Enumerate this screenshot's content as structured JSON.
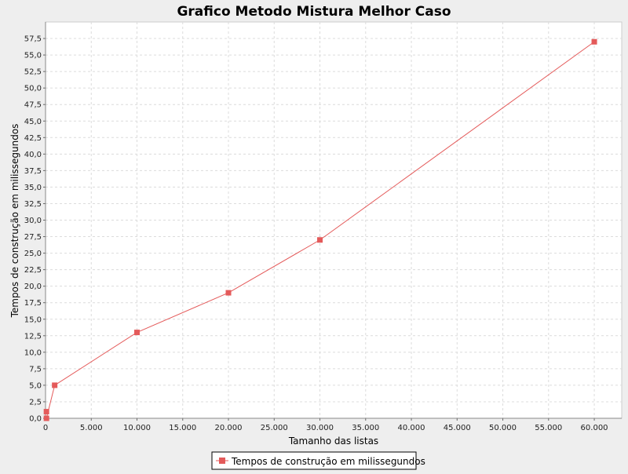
{
  "chart_data": {
    "type": "line",
    "title": "Grafico Metodo Mistura Melhor Caso",
    "xlabel": "Tamanho das listas",
    "ylabel": "Tempos de construção em milissegundos",
    "xlim": [
      0,
      63000
    ],
    "ylim": [
      0,
      60
    ],
    "x_ticks": [
      0,
      5000,
      10000,
      15000,
      20000,
      25000,
      30000,
      35000,
      40000,
      45000,
      50000,
      55000,
      60000
    ],
    "x_tick_labels": [
      "0",
      "5.000",
      "10.000",
      "15.000",
      "20.000",
      "25.000",
      "30.000",
      "35.000",
      "40.000",
      "45.000",
      "50.000",
      "55.000",
      "60.000"
    ],
    "y_ticks": [
      0,
      2.5,
      5,
      7.5,
      10,
      12.5,
      15,
      17.5,
      20,
      22.5,
      25,
      27.5,
      30,
      32.5,
      35,
      37.5,
      40,
      42.5,
      45,
      47.5,
      50,
      52.5,
      55,
      57.5
    ],
    "y_tick_labels": [
      "0,0",
      "2,5",
      "5,0",
      "7,5",
      "10,0",
      "12,5",
      "15,0",
      "17,5",
      "20,0",
      "22,5",
      "25,0",
      "27,5",
      "30,0",
      "32,5",
      "35,0",
      "37,5",
      "40,0",
      "42,5",
      "45,0",
      "47,5",
      "50,0",
      "52,5",
      "55,0",
      "57,5"
    ],
    "grid": true,
    "legend_position": "bottom",
    "series": [
      {
        "name": "Tempos de construção em milissegundos",
        "color": "#e45a5a",
        "x": [
          100,
          1000,
          10000,
          20000,
          30000,
          60000
        ],
        "y": [
          0,
          5,
          13,
          19,
          27,
          57
        ],
        "extra_points": [
          [
            100,
            1
          ]
        ]
      }
    ]
  }
}
